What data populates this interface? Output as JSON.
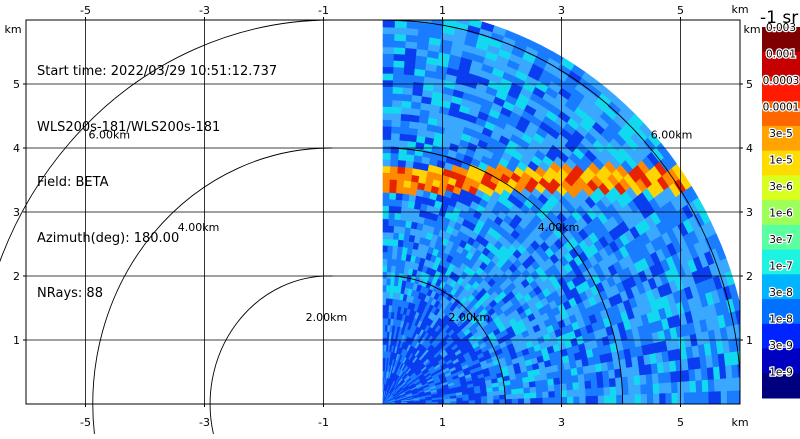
{
  "info": {
    "start_time": "Start time: 2022/03/29 10:51:12.737",
    "instrument": "WLS200s-181/WLS200s-181",
    "field": "Field: BETA",
    "azimuth": "Azimuth(deg): 180.00",
    "nrays": "NRays: 88"
  },
  "axes": {
    "unit_label": "km",
    "x_ticks": [
      "-5",
      "-3",
      "-1",
      "1",
      "3",
      "5"
    ],
    "x_tick_values": [
      -5,
      -3,
      -1,
      1,
      3,
      5
    ],
    "y_ticks": [
      "1",
      "2",
      "3",
      "4",
      "5"
    ],
    "y_tick_values": [
      1,
      2,
      3,
      4,
      5
    ],
    "x_range": [
      -6.0,
      6.0
    ],
    "y_range": [
      0,
      6.0
    ],
    "grid": true
  },
  "range_rings": [
    {
      "radius_km": 2,
      "label": "2.00km"
    },
    {
      "radius_km": 4,
      "label": "4.00km"
    },
    {
      "radius_km": 6,
      "label": "6.00km"
    }
  ],
  "rings_left": [
    "2.00km",
    "4.00km",
    "6.00km"
  ],
  "rings_right": [
    "2.00km",
    "4.00km",
    "6.00km"
  ],
  "colorbar": {
    "title": "-1 sr",
    "labels": [
      "0.003",
      "0.001",
      "0.0003",
      "0.0001",
      "3e-5",
      "1e-5",
      "3e-6",
      "1e-6",
      "3e-7",
      "1e-7",
      "3e-8",
      "1e-8",
      "3e-9",
      "1e-9"
    ],
    "colors": [
      "#7f0000",
      "#c60000",
      "#ff1a00",
      "#ff6600",
      "#ffa300",
      "#ffdc00",
      "#d8ff1f",
      "#9dff5a",
      "#5affa0",
      "#1cf3e0",
      "#00b4ff",
      "#0070ff",
      "#0024ff",
      "#0000c0",
      "#00007f"
    ]
  },
  "scan": {
    "max_range_km": 6.2,
    "layer_height_km": [
      3.3,
      3.7
    ],
    "colors": {
      "background_blue": "#1a7dff",
      "light_blue": "#3aa8ff",
      "deep_blue": "#0a3cf0",
      "cyan": "#12d8f0",
      "layer_orange": "#ff8a00",
      "layer_yellow": "#ffd400",
      "layer_red": "#e82400"
    }
  }
}
